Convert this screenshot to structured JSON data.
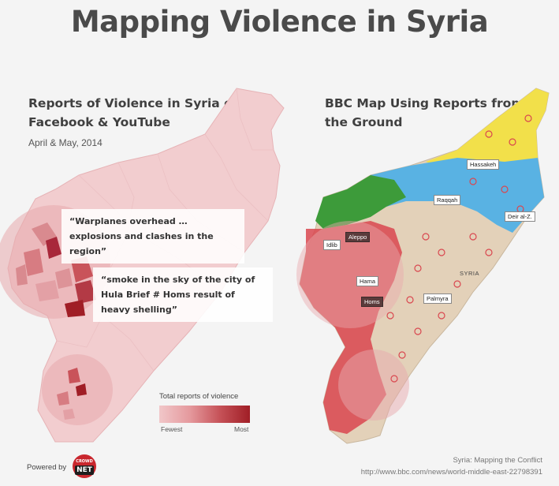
{
  "header": {
    "title": "Mapping Violence in Syria"
  },
  "left_panel": {
    "title": "Reports of Violence in Syria on Facebook & YouTube",
    "subtitle": "April & May, 2014",
    "quotes": [
      "“Warplanes overhead … explosions and clashes in the region”",
      "“smoke in the sky of the city of Hula Brief # Homs result of heavy shelling”"
    ],
    "legend": {
      "title": "Total reports of violence",
      "min_label": "Fewest",
      "max_label": "Most"
    }
  },
  "right_panel": {
    "title": "BBC Map Using Reports from the Ground",
    "country_label": "SYRIA",
    "cities": [
      "Hassakeh",
      "Raqqah",
      "Deir al-Z.",
      "Idlib",
      "Aleppo",
      "Hama",
      "Homs",
      "Palmyra"
    ]
  },
  "footer": {
    "powered_by": "Powered by",
    "logo_top": "CROWD",
    "logo_bottom": "NET",
    "source_title": "Syria: Mapping the Conflict",
    "source_url": "http://www.bbc.com/news/world-middle-east-22798391"
  },
  "colors": {
    "left_map_fill": "#f0c8ca",
    "hotspot_dark": "#a01e26",
    "right_map_base": "#e3d1b9",
    "government_red": "#d9474f",
    "kurdish_yellow": "#f2e04a",
    "isis_blue": "#59b2e3",
    "rebel_green": "#3d9b3a"
  }
}
